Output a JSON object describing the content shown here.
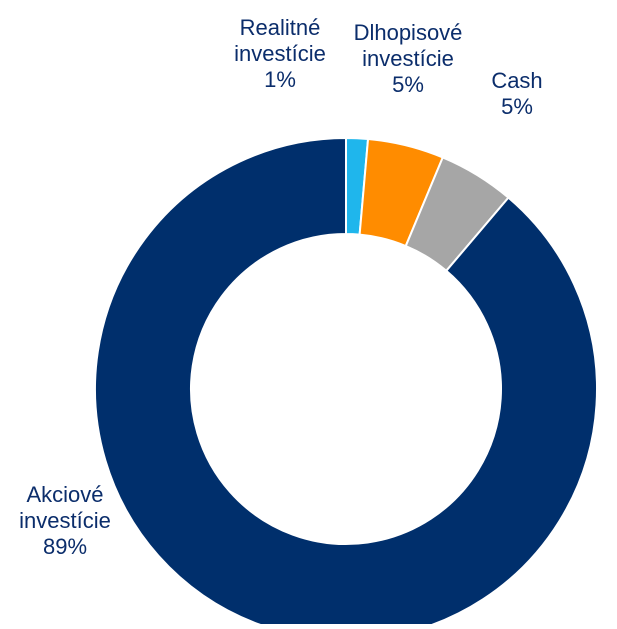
{
  "chart_data": {
    "type": "pie",
    "title": "",
    "donut": true,
    "slices": [
      {
        "label_lines": [
          "Realitné",
          "investície"
        ],
        "value": 1.4,
        "percent_label": "1%",
        "color": "#1fb6ec"
      },
      {
        "label_lines": [
          "Dlhopisové",
          "investície"
        ],
        "value": 4.9,
        "percent_label": "5%",
        "color": "#ff8c00"
      },
      {
        "label_lines": [
          "Cash"
        ],
        "value": 4.9,
        "percent_label": "5%",
        "color": "#a6a6a6"
      },
      {
        "label_lines": [
          "Akciové",
          "investície"
        ],
        "value": 88.8,
        "percent_label": "89%",
        "color": "#002f6c"
      }
    ],
    "label_color": "#0b2d6b",
    "legend": "none"
  }
}
